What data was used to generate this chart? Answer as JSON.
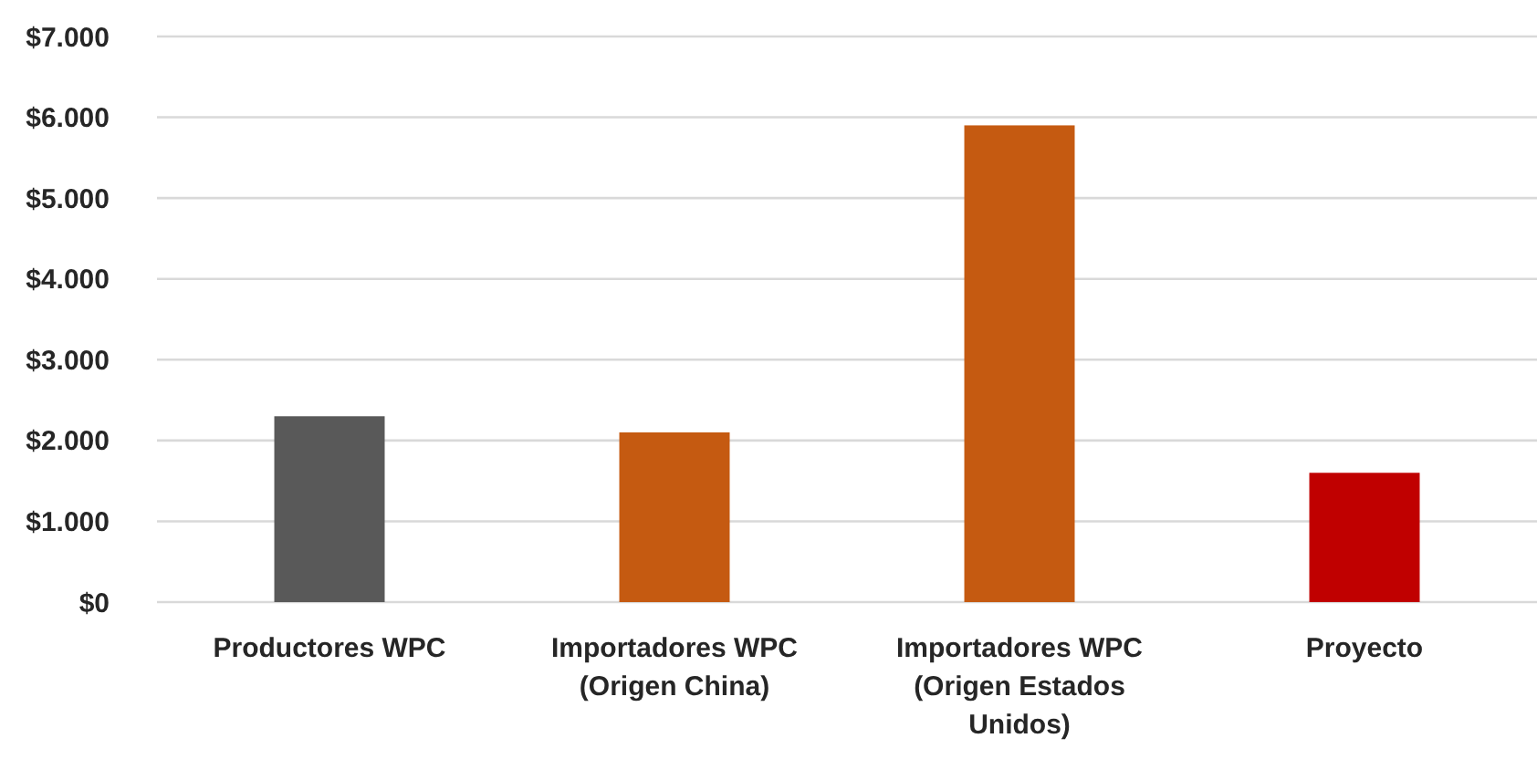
{
  "chart_data": {
    "type": "bar",
    "categories": [
      "Productores WPC",
      "Importadores WPC (Origen China)",
      "Importadores WPC (Origen Estados Unidos)",
      "Proyecto"
    ],
    "values": [
      2300,
      2100,
      5900,
      1600
    ],
    "colors": [
      "#595959",
      "#c55a11",
      "#c55a11",
      "#c00000"
    ],
    "ylim": [
      0,
      7000
    ],
    "yticks": [
      {
        "value": 0,
        "label": "$0"
      },
      {
        "value": 1000,
        "label": "$1.000"
      },
      {
        "value": 2000,
        "label": "$2.000"
      },
      {
        "value": 3000,
        "label": "$3.000"
      },
      {
        "value": 4000,
        "label": "$4.000"
      },
      {
        "value": 5000,
        "label": "$5.000"
      },
      {
        "value": 6000,
        "label": "$6.000"
      },
      {
        "value": 7000,
        "label": "$7.000"
      }
    ],
    "grid": "y"
  }
}
